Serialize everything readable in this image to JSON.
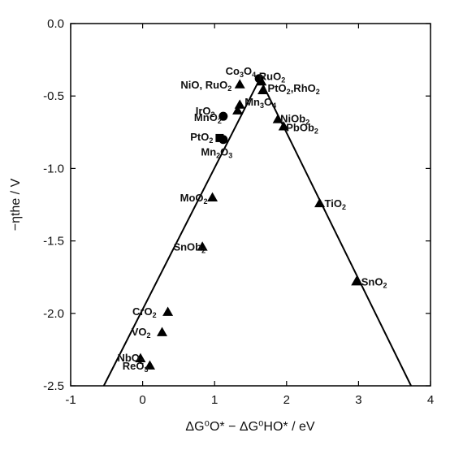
{
  "chart_data": {
    "type": "scatter",
    "title": "",
    "xlabel": "ΔG⁰O* − ΔG⁰HO* / eV",
    "ylabel": "−ηthe / V",
    "xlim": [
      -1,
      4
    ],
    "ylim": [
      -2.5,
      0.0
    ],
    "xticks": [
      "-1",
      "0",
      "1",
      "2",
      "3",
      "4"
    ],
    "yticks": [
      "0.0",
      "-0.5",
      "-1.0",
      "-1.5",
      "-2.0",
      "-2.5"
    ],
    "grid": false,
    "marker_color": "#000000",
    "lines": [
      {
        "x": [
          -0.54,
          1.63
        ],
        "y": [
          -2.5,
          -0.38
        ]
      },
      {
        "x": [
          1.63,
          3.73
        ],
        "y": [
          -0.38,
          -2.5
        ]
      }
    ],
    "points": [
      {
        "label": "Co3O4",
        "x": 1.62,
        "y": -0.38,
        "marker": "circle"
      },
      {
        "label": "RuO2",
        "x": 1.65,
        "y": -0.4,
        "marker": "triangle"
      },
      {
        "label": "NiO, RuO2",
        "x": 1.35,
        "y": -0.42,
        "marker": "triangle"
      },
      {
        "label": "PtO2, RhO2",
        "x": 1.67,
        "y": -0.46,
        "marker": "triangle"
      },
      {
        "label": "Mn3O4",
        "x": 1.35,
        "y": -0.56,
        "marker": "triangle"
      },
      {
        "label": "IrO2",
        "x": 1.32,
        "y": -0.6,
        "marker": "triangle"
      },
      {
        "label": "MnO2",
        "x": 1.12,
        "y": -0.64,
        "marker": "circle"
      },
      {
        "label": "NiOb2",
        "x": 1.88,
        "y": -0.66,
        "marker": "triangle"
      },
      {
        "label": "PbOb2",
        "x": 1.96,
        "y": -0.71,
        "marker": "triangle"
      },
      {
        "label": "PtO2",
        "x": 1.07,
        "y": -0.79,
        "marker": "square"
      },
      {
        "label": "Mn2O3",
        "x": 1.12,
        "y": -0.8,
        "marker": "circle"
      },
      {
        "label": "MoO2",
        "x": 0.97,
        "y": -1.2,
        "marker": "triangle"
      },
      {
        "label": "TiO2",
        "x": 2.46,
        "y": -1.24,
        "marker": "triangle"
      },
      {
        "label": "SnOb2",
        "x": 0.83,
        "y": -1.54,
        "marker": "triangle"
      },
      {
        "label": "SnO2",
        "x": 2.97,
        "y": -1.78,
        "marker": "triangle"
      },
      {
        "label": "CrO2",
        "x": 0.35,
        "y": -1.99,
        "marker": "triangle"
      },
      {
        "label": "VO2",
        "x": 0.27,
        "y": -2.13,
        "marker": "triangle"
      },
      {
        "label": "NbO2",
        "x": -0.03,
        "y": -2.31,
        "marker": "triangle"
      },
      {
        "label": "ReO3",
        "x": 0.1,
        "y": -2.36,
        "marker": "triangle"
      }
    ],
    "annotations": [
      {
        "parts": [
          [
            "Co",
            false
          ],
          [
            "3",
            true
          ],
          [
            "O",
            false
          ],
          [
            "4",
            true
          ]
        ],
        "x": 1.62,
        "y": -0.38,
        "anchor": "end",
        "dx": -4,
        "dy": -5
      },
      {
        "parts": [
          [
            "RuO",
            false
          ],
          [
            "2",
            true
          ]
        ],
        "x": 1.65,
        "y": -0.4,
        "anchor": "start",
        "dx": -3,
        "dy": -2
      },
      {
        "parts": [
          [
            "NiO, RuO",
            false
          ],
          [
            "2",
            true
          ]
        ],
        "x": 1.35,
        "y": -0.42,
        "anchor": "end",
        "dx": -10,
        "dy": 5
      },
      {
        "parts": [
          [
            "PtO",
            false
          ],
          [
            "2",
            true
          ],
          [
            ",RhO",
            false
          ],
          [
            "2",
            true
          ]
        ],
        "x": 1.67,
        "y": -0.46,
        "anchor": "start",
        "dx": 6,
        "dy": 2
      },
      {
        "parts": [
          [
            "Mn",
            false
          ],
          [
            "3",
            true
          ],
          [
            "O",
            false
          ],
          [
            "4",
            true
          ]
        ],
        "x": 1.35,
        "y": -0.56,
        "anchor": "start",
        "dx": 6,
        "dy": 1
      },
      {
        "parts": [
          [
            "IrO",
            false
          ],
          [
            "2",
            true
          ]
        ],
        "x": 1.32,
        "y": -0.6,
        "anchor": "end",
        "dx": -28,
        "dy": 5
      },
      {
        "parts": [
          [
            "MnO",
            false
          ],
          [
            "2",
            true
          ]
        ],
        "x": 1.12,
        "y": -0.64,
        "anchor": "end",
        "dx": -2,
        "dy": 6
      },
      {
        "parts": [
          [
            "NiOb",
            false
          ],
          [
            "2",
            true
          ]
        ],
        "x": 1.88,
        "y": -0.66,
        "anchor": "start",
        "dx": 3,
        "dy": 4
      },
      {
        "parts": [
          [
            "PbOb",
            false
          ],
          [
            "2",
            true
          ]
        ],
        "x": 1.96,
        "y": -0.71,
        "anchor": "start",
        "dx": 3,
        "dy": 6
      },
      {
        "parts": [
          [
            "PtO",
            false
          ],
          [
            "2",
            true
          ]
        ],
        "x": 1.07,
        "y": -0.79,
        "anchor": "end",
        "dx": -8,
        "dy": 3
      },
      {
        "parts": [
          [
            "Mn",
            false
          ],
          [
            "2",
            true
          ],
          [
            "O",
            false
          ],
          [
            "3",
            true
          ]
        ],
        "x": 1.12,
        "y": -0.8,
        "anchor": "middle",
        "dx": -8,
        "dy": 20
      },
      {
        "parts": [
          [
            "MoO",
            false
          ],
          [
            "2",
            true
          ]
        ],
        "x": 0.97,
        "y": -1.2,
        "anchor": "end",
        "dx": -6,
        "dy": 5
      },
      {
        "parts": [
          [
            "TiO",
            false
          ],
          [
            "2",
            true
          ]
        ],
        "x": 2.46,
        "y": -1.24,
        "anchor": "start",
        "dx": 6,
        "dy": 5
      },
      {
        "parts": [
          [
            "SnOb",
            false
          ],
          [
            "2",
            true
          ]
        ],
        "x": 0.83,
        "y": -1.54,
        "anchor": "end",
        "dx": 4,
        "dy": 5
      },
      {
        "parts": [
          [
            "SnO",
            false
          ],
          [
            "2",
            true
          ]
        ],
        "x": 2.97,
        "y": -1.78,
        "anchor": "start",
        "dx": 6,
        "dy": 5
      },
      {
        "parts": [
          [
            "CrO",
            false
          ],
          [
            "2",
            true
          ]
        ],
        "x": 0.35,
        "y": -1.99,
        "anchor": "end",
        "dx": -14,
        "dy": 4
      },
      {
        "parts": [
          [
            "VO",
            false
          ],
          [
            "2",
            true
          ]
        ],
        "x": 0.27,
        "y": -2.13,
        "anchor": "end",
        "dx": -14,
        "dy": 4
      },
      {
        "parts": [
          [
            "NbO",
            false
          ],
          [
            "2",
            true
          ]
        ],
        "x": -0.03,
        "y": -2.31,
        "anchor": "end",
        "dx": 4,
        "dy": 4
      },
      {
        "parts": [
          [
            "ReO",
            false
          ],
          [
            "3",
            true
          ]
        ],
        "x": 0.1,
        "y": -2.36,
        "anchor": "end",
        "dx": -2,
        "dy": 5
      }
    ]
  }
}
